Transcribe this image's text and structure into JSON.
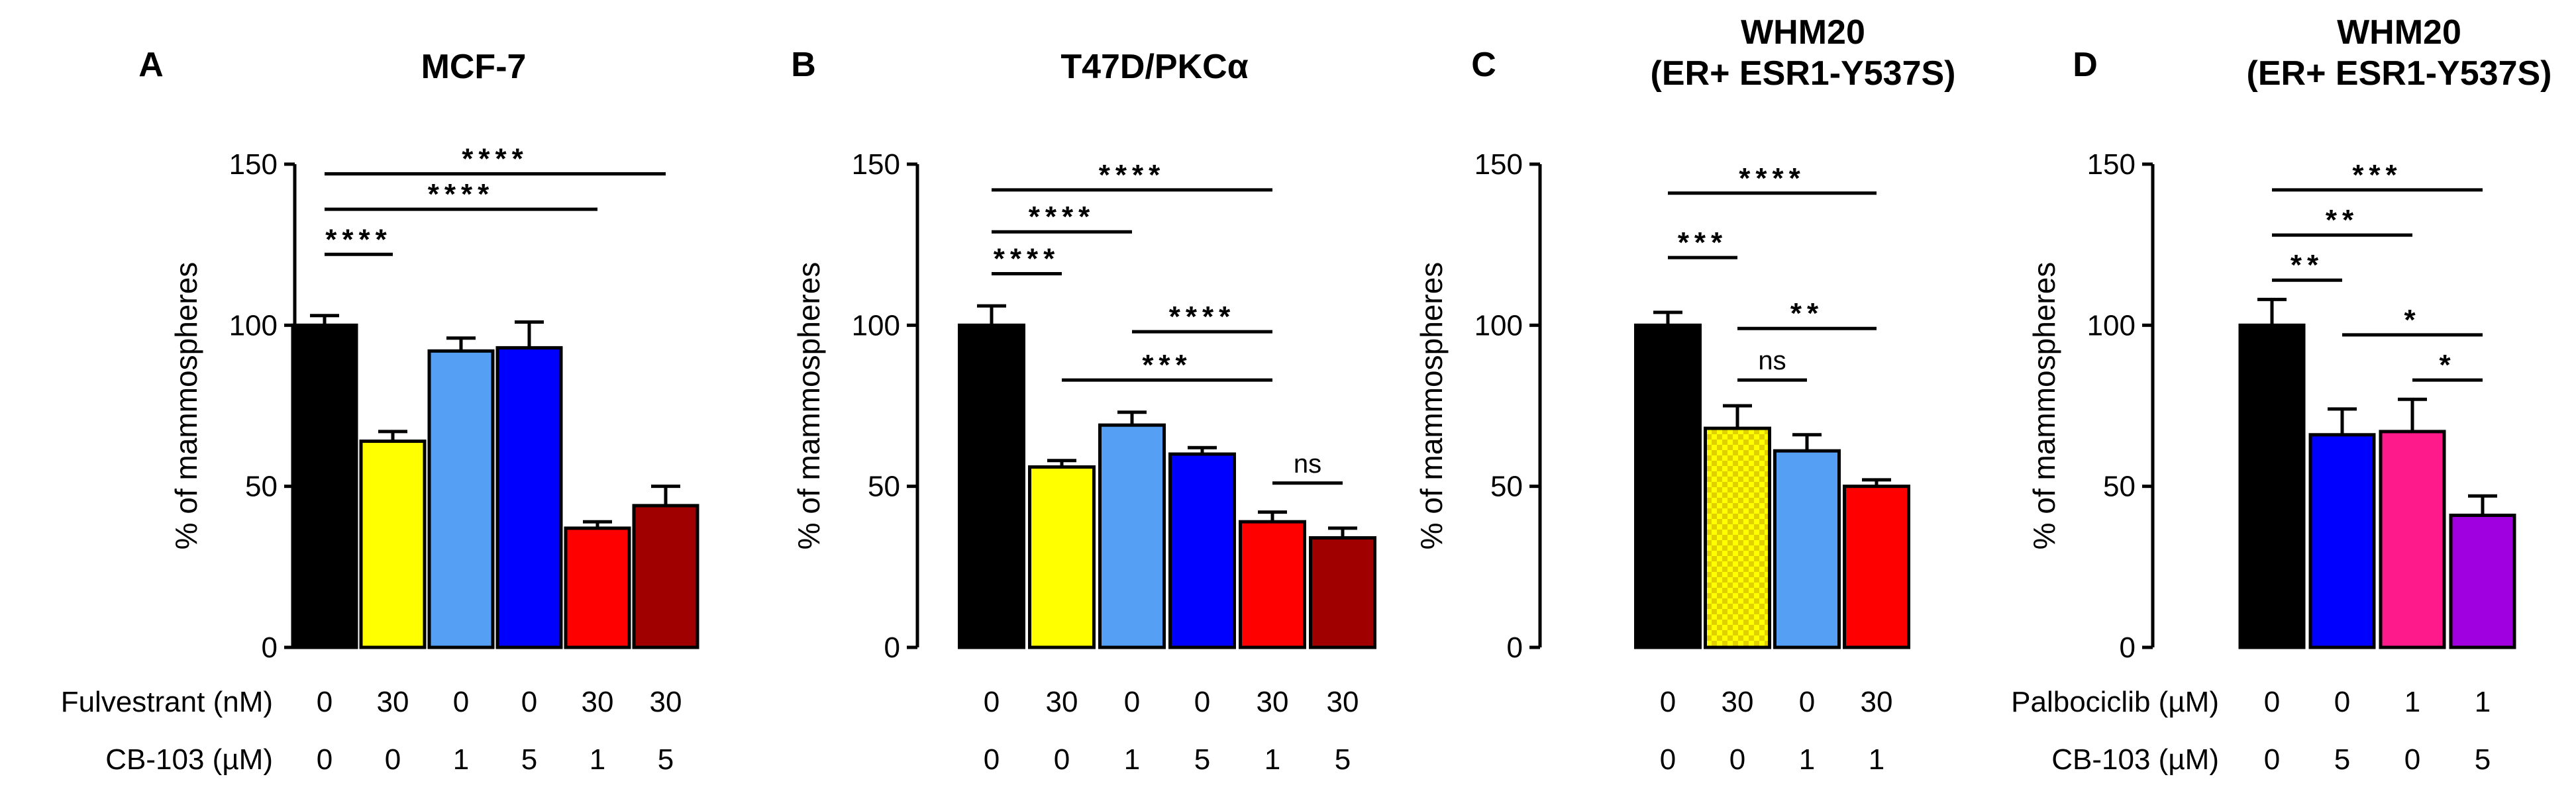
{
  "chart_data": [
    {
      "type": "bar",
      "panel": "A",
      "title": [
        "MCF-7"
      ],
      "ylabel": "% of mammospheres",
      "ylim": [
        0,
        150
      ],
      "yticks": [
        0,
        50,
        100,
        150
      ],
      "rows": [
        {
          "name": "Fulvestrant (nM)",
          "values": [
            "0",
            "30",
            "0",
            "0",
            "30",
            "30"
          ]
        },
        {
          "name": "CB-103 (µM)",
          "values": [
            "0",
            "0",
            "1",
            "5",
            "1",
            "5"
          ]
        }
      ],
      "values": [
        100,
        64,
        92,
        93,
        37,
        44
      ],
      "errors": [
        3,
        3,
        4,
        8,
        2,
        6
      ],
      "colors": [
        "#000000",
        "#ffff00",
        "#55a0f5",
        "#0000ff",
        "#ff0000",
        "#a00000"
      ],
      "patterns": [
        null,
        null,
        null,
        null,
        null,
        null
      ],
      "significance": [
        {
          "from": 0,
          "to": 1,
          "y": 122,
          "label": "****"
        },
        {
          "from": 0,
          "to": 4,
          "y": 136,
          "label": "****"
        },
        {
          "from": 0,
          "to": 5,
          "y": 147,
          "label": "****"
        }
      ]
    },
    {
      "type": "bar",
      "panel": "B",
      "title": [
        "T47D/PKCα"
      ],
      "ylabel": "% of mammospheres",
      "ylim": [
        0,
        150
      ],
      "yticks": [
        0,
        50,
        100,
        150
      ],
      "rows": [
        {
          "name": "",
          "values": [
            "0",
            "30",
            "0",
            "0",
            "30",
            "30"
          ]
        },
        {
          "name": "",
          "values": [
            "0",
            "0",
            "1",
            "5",
            "1",
            "5"
          ]
        }
      ],
      "values": [
        100,
        56,
        69,
        60,
        39,
        34
      ],
      "errors": [
        6,
        2,
        4,
        2,
        3,
        3
      ],
      "colors": [
        "#000000",
        "#ffff00",
        "#55a0f5",
        "#0000ff",
        "#ff0000",
        "#a00000"
      ],
      "patterns": [
        null,
        null,
        null,
        null,
        null,
        null
      ],
      "significance": [
        {
          "from": 0,
          "to": 1,
          "y": 116,
          "label": "****"
        },
        {
          "from": 0,
          "to": 2,
          "y": 129,
          "label": "****"
        },
        {
          "from": 0,
          "to": 4,
          "y": 142,
          "label": "****"
        },
        {
          "from": 2,
          "to": 4,
          "y": 98,
          "label": "****"
        },
        {
          "from": 1,
          "to": 4,
          "y": 83,
          "label": "***"
        },
        {
          "from": 4,
          "to": 5,
          "y": 51,
          "label": "ns"
        }
      ]
    },
    {
      "type": "bar",
      "panel": "C",
      "title": [
        "WHM20",
        "(ER+ ESR1-Y537S)"
      ],
      "ylabel": "% of mammospheres",
      "ylim": [
        0,
        150
      ],
      "yticks": [
        0,
        50,
        100,
        150
      ],
      "rows": [
        {
          "name": "",
          "values": [
            "0",
            "30",
            "0",
            "30"
          ]
        },
        {
          "name": "",
          "values": [
            "0",
            "0",
            "1",
            "1"
          ]
        }
      ],
      "values": [
        100,
        68,
        61,
        50
      ],
      "errors": [
        4,
        7,
        5,
        2
      ],
      "colors": [
        "#000000",
        "#ffff00",
        "#55a0f5",
        "#ff0000"
      ],
      "patterns": [
        null,
        "check",
        null,
        null
      ],
      "significance": [
        {
          "from": 0,
          "to": 1,
          "y": 121,
          "label": "***"
        },
        {
          "from": 0,
          "to": 3,
          "y": 141,
          "label": "****"
        },
        {
          "from": 1,
          "to": 3,
          "y": 99,
          "label": "**"
        },
        {
          "from": 1,
          "to": 2,
          "y": 83,
          "label": "ns"
        }
      ]
    },
    {
      "type": "bar",
      "panel": "D",
      "title": [
        "WHM20",
        "(ER+ ESR1-Y537S)"
      ],
      "ylabel": "% of mammospheres",
      "ylim": [
        0,
        150
      ],
      "yticks": [
        0,
        50,
        100,
        150
      ],
      "rows": [
        {
          "name": "Palbociclib (µM)",
          "values": [
            "0",
            "0",
            "1",
            "1"
          ]
        },
        {
          "name": "CB-103 (µM)",
          "values": [
            "0",
            "5",
            "0",
            "5"
          ]
        }
      ],
      "values": [
        100,
        66,
        67,
        41
      ],
      "errors": [
        8,
        8,
        10,
        6
      ],
      "colors": [
        "#000000",
        "#0000ff",
        "#ff1a8c",
        "#a000e0"
      ],
      "patterns": [
        null,
        null,
        null,
        null
      ],
      "significance": [
        {
          "from": 0,
          "to": 1,
          "y": 114,
          "label": "**"
        },
        {
          "from": 0,
          "to": 2,
          "y": 128,
          "label": "**"
        },
        {
          "from": 0,
          "to": 3,
          "y": 142,
          "label": "***"
        },
        {
          "from": 1,
          "to": 3,
          "y": 97,
          "label": "*"
        },
        {
          "from": 2,
          "to": 3,
          "y": 83,
          "label": "*"
        }
      ]
    }
  ]
}
